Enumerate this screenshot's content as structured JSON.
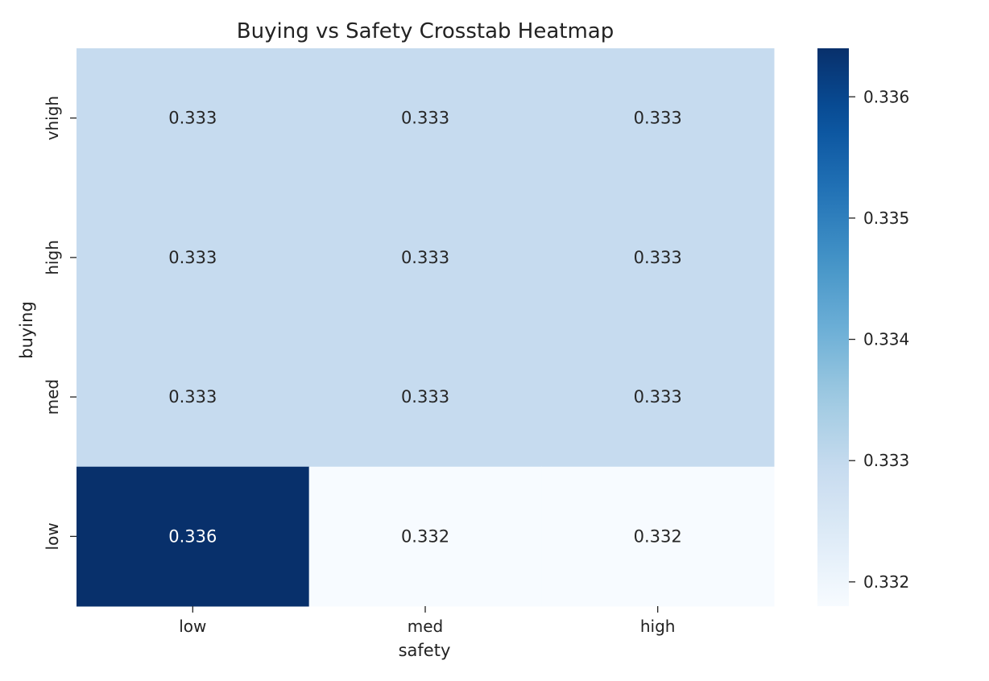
{
  "chart_data": {
    "type": "heatmap",
    "title": "Buying vs Safety Crosstab Heatmap",
    "xlabel": "safety",
    "ylabel": "buying",
    "x_categories": [
      "low",
      "med",
      "high"
    ],
    "y_categories": [
      "vhigh",
      "high",
      "med",
      "low"
    ],
    "values": [
      [
        0.333,
        0.333,
        0.333
      ],
      [
        0.333,
        0.333,
        0.333
      ],
      [
        0.333,
        0.333,
        0.333
      ],
      [
        0.336,
        0.332,
        0.332
      ]
    ],
    "colorbar": {
      "colormap": "Blues",
      "range": [
        0.3318,
        0.3364
      ],
      "ticks": [
        0.332,
        0.333,
        0.334,
        0.335,
        0.336
      ],
      "tick_labels": [
        "0.332",
        "0.333",
        "0.334",
        "0.335",
        "0.336"
      ]
    },
    "annotation_colors": {
      "light_cell": "#262626",
      "dark_cell": "#ffffff"
    }
  }
}
